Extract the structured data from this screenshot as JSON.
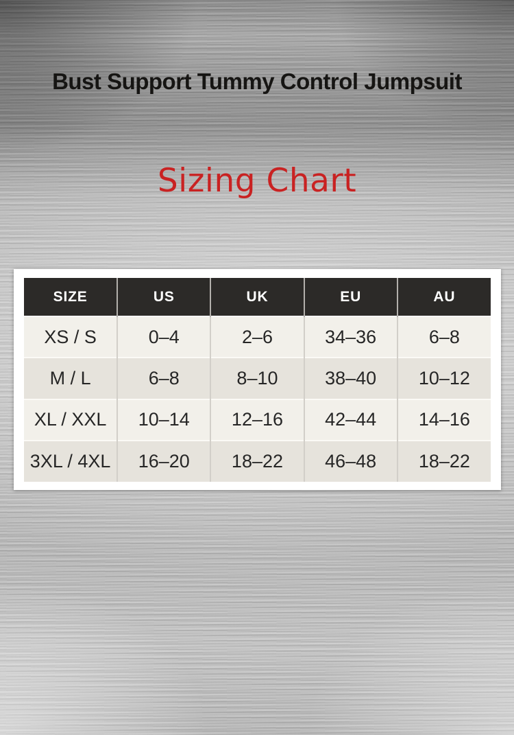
{
  "header": {
    "title": "Bust Support Tummy Control Jumpsuit",
    "subtitle": "Sizing Chart"
  },
  "colors": {
    "subtitle_red": "#c92222",
    "table_header_bg": "#2c2a28",
    "table_header_text": "#ffffff",
    "row_alt_light": "#f2f0ea",
    "row_alt_dark": "#e6e3dc",
    "cell_text": "#262626",
    "card_bg": "#ffffff"
  },
  "chart_data": {
    "type": "table",
    "title": "Sizing Chart",
    "columns": [
      "SIZE",
      "US",
      "UK",
      "EU",
      "AU"
    ],
    "rows": [
      [
        "XS / S",
        "0–4",
        "2–6",
        "34–36",
        "6–8"
      ],
      [
        "M / L",
        "6–8",
        "8–10",
        "38–40",
        "10–12"
      ],
      [
        "XL / XXL",
        "10–14",
        "12–16",
        "42–44",
        "14–16"
      ],
      [
        "3XL / 4XL",
        "16–20",
        "18–22",
        "46–48",
        "18–22"
      ]
    ]
  }
}
